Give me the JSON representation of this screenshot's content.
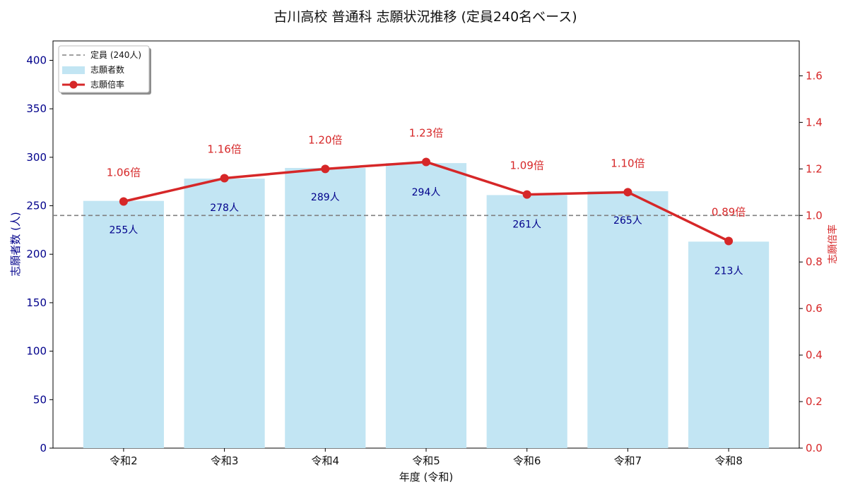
{
  "chart_data": {
    "type": "bar+line",
    "title": "古川高校 普通科 志願状況推移 (定員240名ベース)",
    "xlabel": "年度 (令和)",
    "ylabel_left": "志願者数 (人)",
    "ylabel_right": "志願倍率",
    "categories": [
      "令和2",
      "令和3",
      "令和4",
      "令和5",
      "令和6",
      "令和7",
      "令和8"
    ],
    "applicants": [
      255,
      278,
      289,
      294,
      261,
      265,
      213
    ],
    "applicant_labels": [
      "255人",
      "278人",
      "289人",
      "294人",
      "261人",
      "265人",
      "213人"
    ],
    "ratios": [
      1.06,
      1.16,
      1.2,
      1.23,
      1.09,
      1.1,
      0.89
    ],
    "ratio_labels": [
      "1.06倍",
      "1.16倍",
      "1.20倍",
      "1.23倍",
      "1.09倍",
      "1.10倍",
      "0.89倍"
    ],
    "capacity": 240,
    "ylim_left": [
      0,
      420
    ],
    "ylim_right": [
      0,
      1.75
    ],
    "yticks_left": [
      "0",
      "50",
      "100",
      "150",
      "200",
      "250",
      "300",
      "350",
      "400"
    ],
    "yticks_right": [
      "0.0",
      "0.2",
      "0.4",
      "0.6",
      "0.8",
      "1.0",
      "1.2",
      "1.4",
      "1.6"
    ],
    "legend": {
      "position": "top-left",
      "capacity_label": "定員 (240人)",
      "applicants_label": "志願者数",
      "ratio_label": "志願倍率"
    },
    "colors": {
      "bar": "#c2e5f3",
      "line": "#d62728",
      "capacity": "#808080",
      "left_axis": "#00008b",
      "right_axis": "#d62728"
    }
  }
}
